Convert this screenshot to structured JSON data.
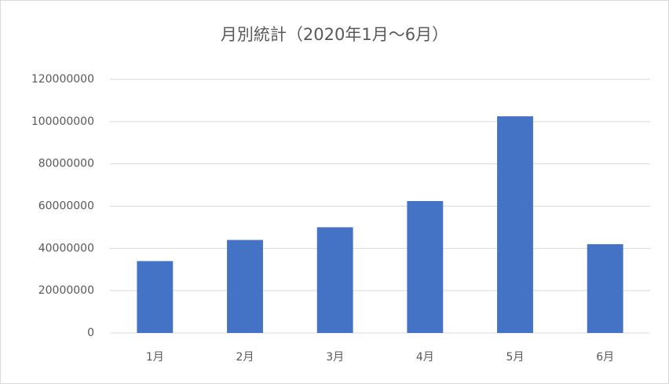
{
  "chart_data": {
    "type": "bar",
    "title": "月別統計（2020年1月～6月）",
    "categories": [
      "1月",
      "2月",
      "3月",
      "4月",
      "5月",
      "6月"
    ],
    "values": [
      34000000,
      44000000,
      50000000,
      62400000,
      102500000,
      42000000
    ],
    "color": "#4472c4",
    "ylim": [
      0,
      120000000
    ],
    "yticks": [
      0,
      20000000,
      40000000,
      60000000,
      80000000,
      100000000,
      120000000
    ],
    "grid": true
  }
}
